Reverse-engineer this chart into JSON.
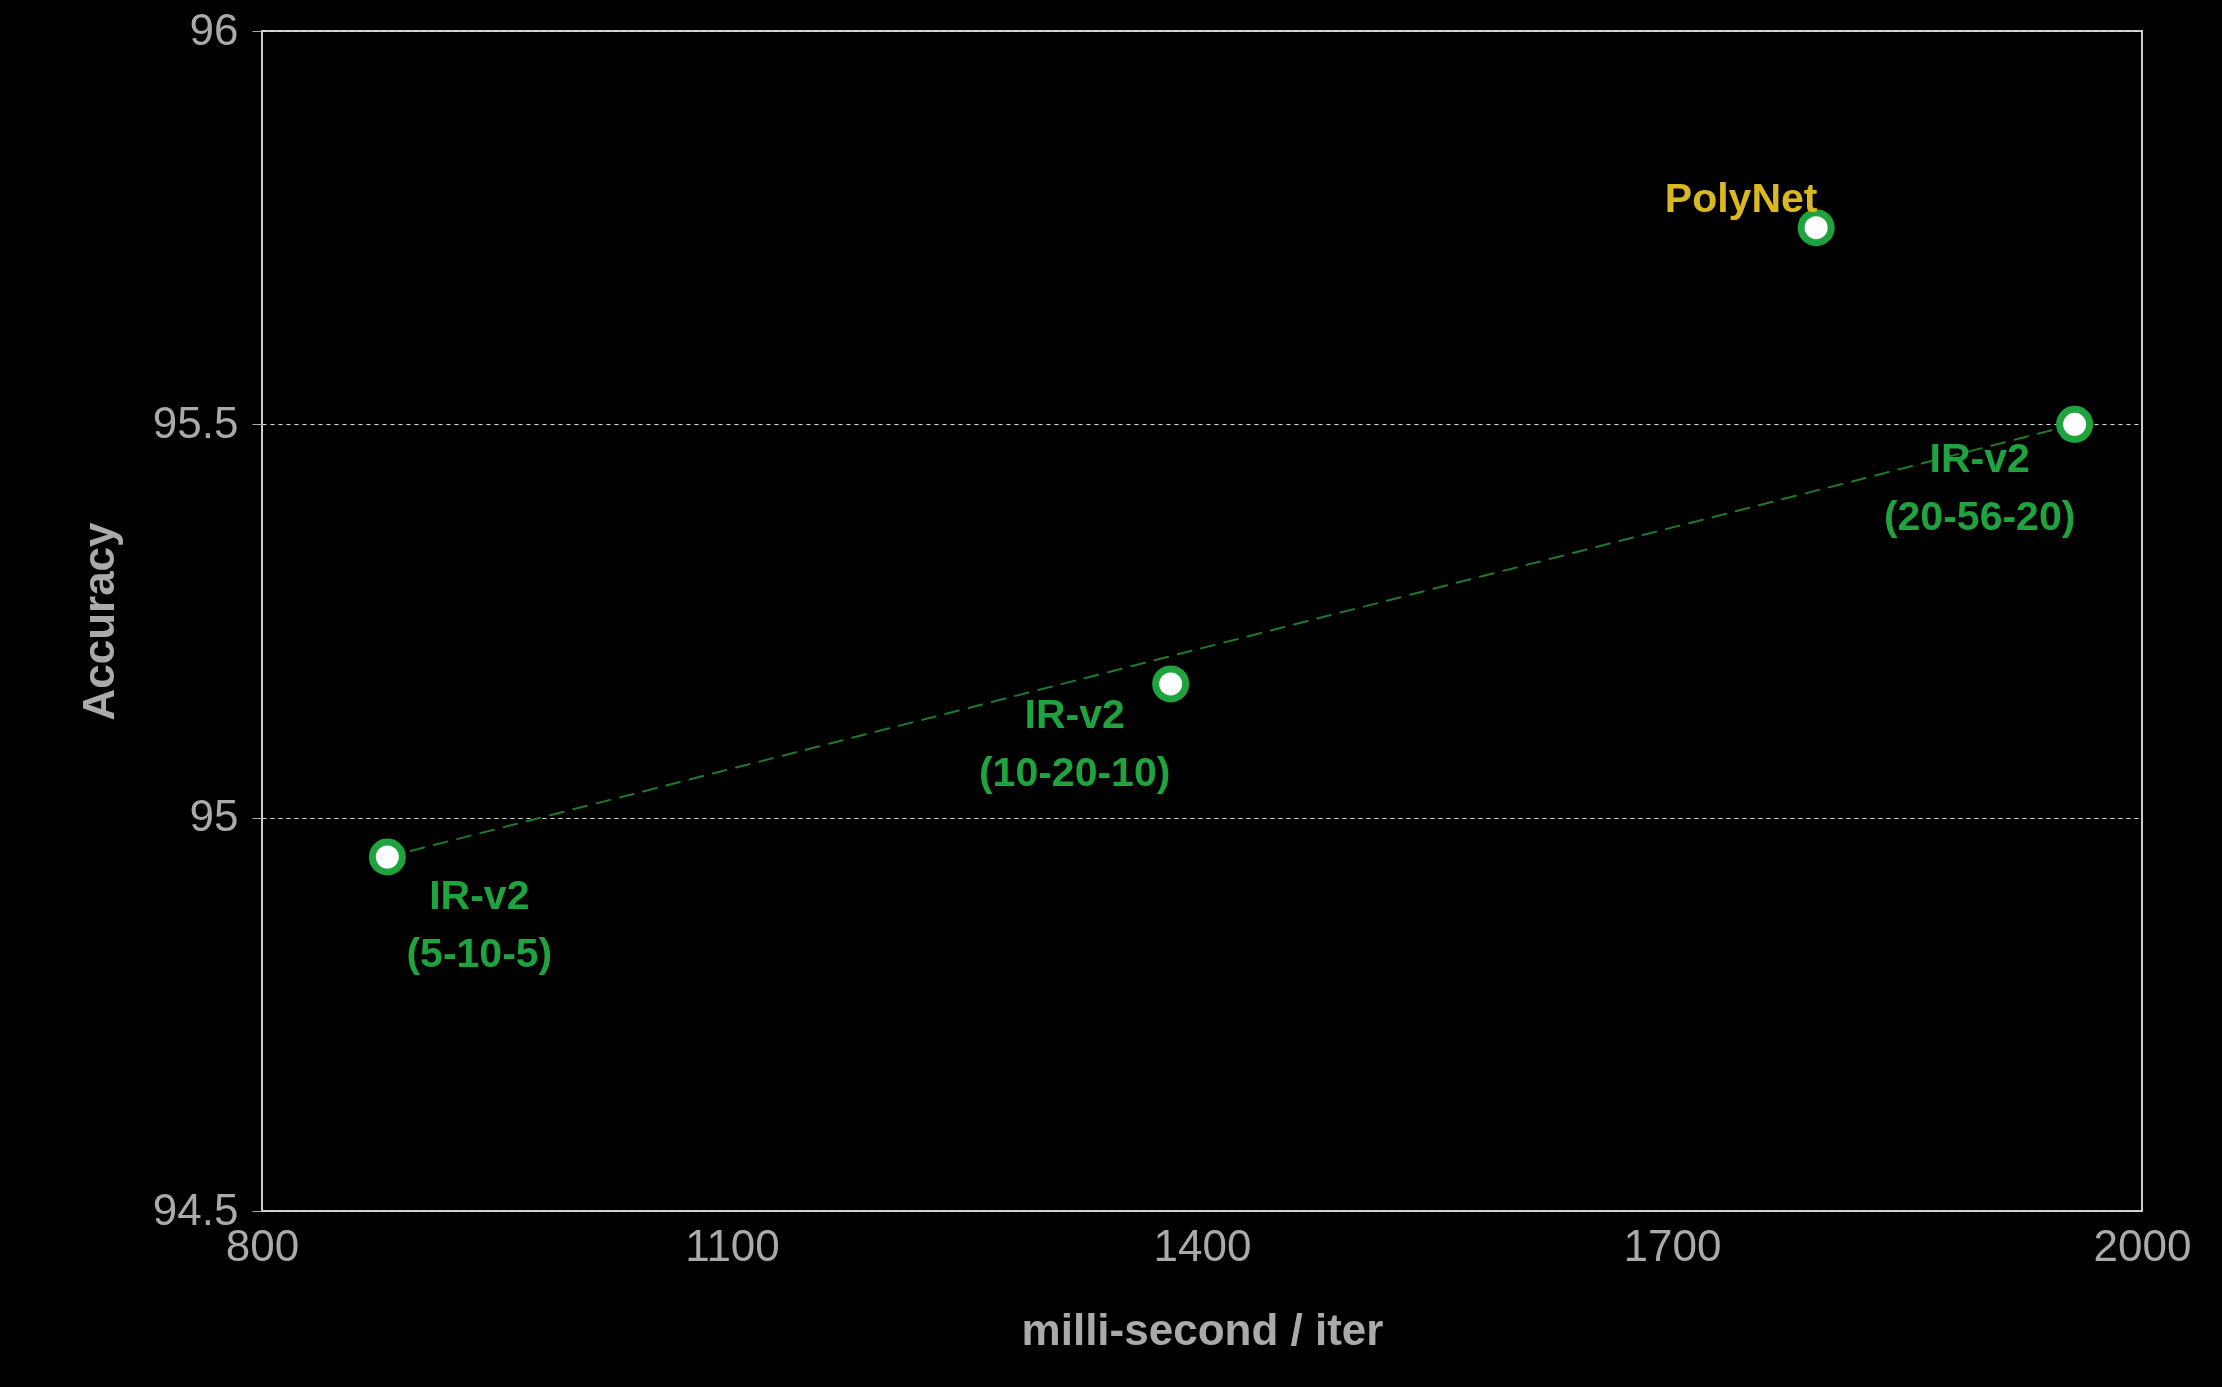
{
  "chart_data": {
    "type": "scatter",
    "xlabel": "milli-second / iter",
    "ylabel": "Accuracy",
    "series": [
      {
        "color": "#1fa33f",
        "marker": "circle",
        "x": [
          880,
          1380,
          1792,
          1957
        ],
        "values": [
          94.95,
          95.17,
          95.75,
          95.5
        ]
      },
      {
        "type": "line",
        "color": "#1e7a2e",
        "line_style": "dashed",
        "x": [
          880,
          1957
        ],
        "values": [
          94.95,
          95.5
        ]
      }
    ],
    "annotations": [
      {
        "text": "PolyNet",
        "x": 1792,
        "y": 95.75
      },
      {
        "text": "IR-v2\n(5-10-5)",
        "x": 880,
        "y": 94.95
      },
      {
        "text": "IR-v2\n(10-20-10)",
        "x": 1380,
        "y": 95.17
      },
      {
        "text": "IR-v2\n(20-56-20)",
        "x": 1957,
        "y": 95.5
      }
    ],
    "xlim": [
      800,
      2000
    ],
    "xticks": [
      800,
      1100,
      1400,
      1700,
      2000
    ],
    "ylim": [
      94.5,
      96
    ],
    "yticks": [
      94.5,
      95,
      95.5,
      96
    ],
    "grid": "y"
  }
}
